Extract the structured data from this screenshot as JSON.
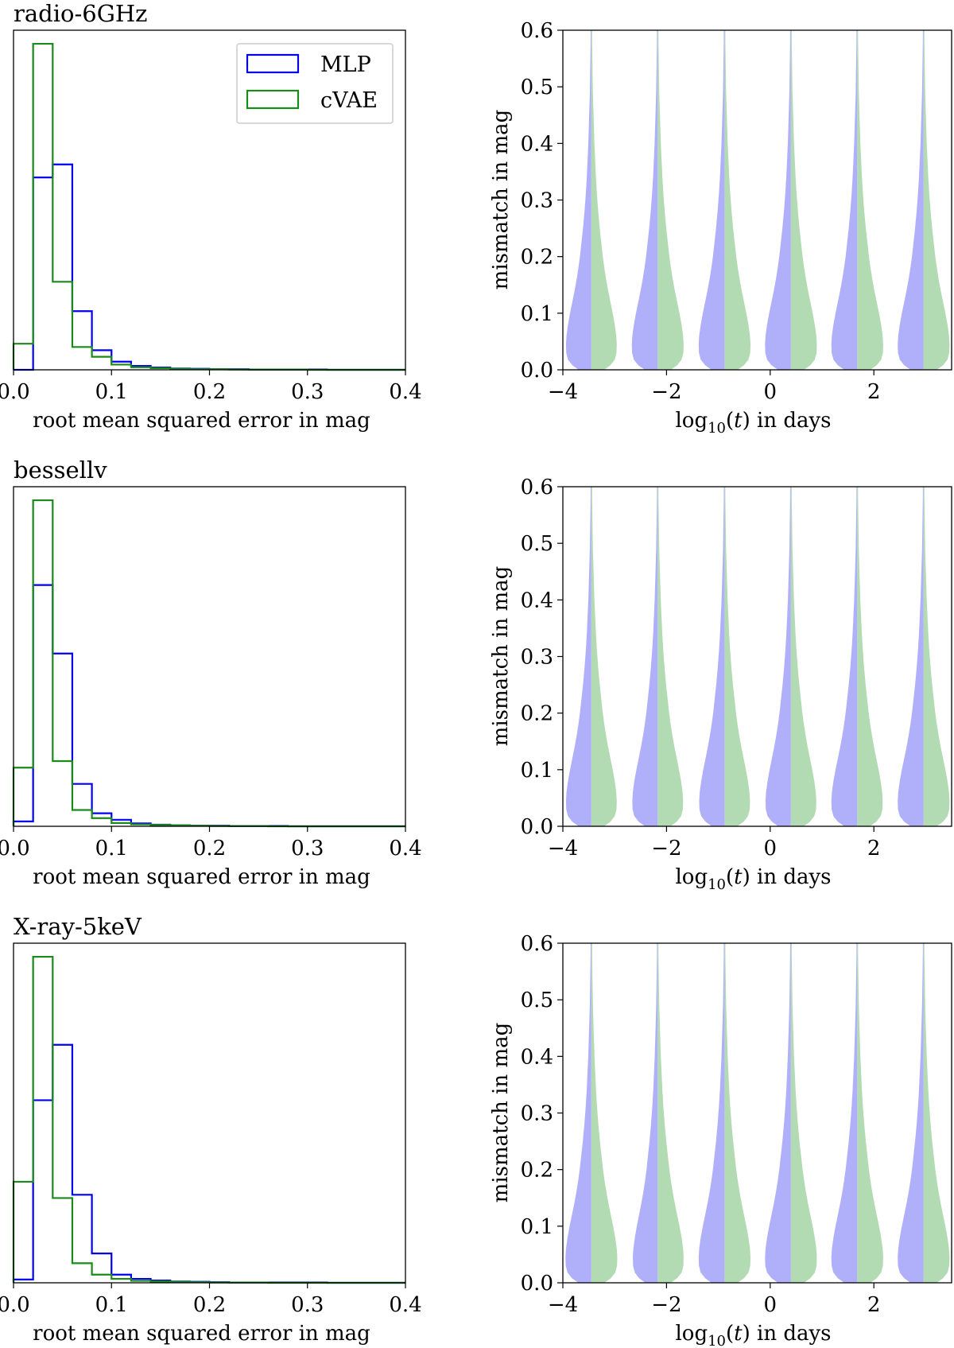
{
  "figure": {
    "rows": [
      {
        "band": "radio-6GHz",
        "hist": {
          "type": "histogram",
          "title": "radio-6GHz",
          "xlabel": "root mean squared error in mag",
          "ylabel": "",
          "xlim": [
            0.0,
            0.4
          ],
          "xticks": [
            "0.0",
            "0.1",
            "0.2",
            "0.3",
            "0.4"
          ],
          "bin_edges": [
            0.0,
            0.02,
            0.04,
            0.06,
            0.08,
            0.1,
            0.12,
            0.14,
            0.16,
            0.18,
            0.2,
            0.22,
            0.24,
            0.26,
            0.28,
            0.3,
            0.32,
            0.34,
            0.36,
            0.38,
            0.4
          ],
          "series": [
            {
              "name": "MLP",
              "color": "#0000ee",
              "values": [
                0.0,
                0.59,
                0.63,
                0.18,
                0.06,
                0.025,
                0.012,
                0.007,
                0.004,
                0.003,
                0.002,
                0.002,
                0.001,
                0.001,
                0.001,
                0.001,
                0.0,
                0.0,
                0.0,
                0.0
              ]
            },
            {
              "name": "cVAE",
              "color": "#1a8a1a",
              "values": [
                0.08,
                1.0,
                0.27,
                0.07,
                0.04,
                0.016,
                0.008,
                0.005,
                0.003,
                0.002,
                0.002,
                0.001,
                0.001,
                0.001,
                0.001,
                0.0,
                0.0,
                0.0,
                0.0,
                0.0
              ]
            }
          ],
          "legend": [
            "MLP",
            "cVAE"
          ]
        },
        "violin": {
          "type": "violin",
          "xlabel": "log10(t) in days",
          "ylabel": "mismatch in mag",
          "xlim": [
            -4.0,
            3.5
          ],
          "ylim": [
            0.0,
            0.6
          ],
          "xticks": [
            "−4",
            "−2",
            "0",
            "2"
          ],
          "yticks": [
            "0.0",
            "0.1",
            "0.2",
            "0.3",
            "0.4",
            "0.5",
            "0.6"
          ],
          "positions": [
            -3.45,
            -2.17,
            -0.88,
            0.4,
            1.68,
            2.96
          ],
          "series": [
            {
              "name": "MLP",
              "side": "left",
              "color": "#b0b0fa"
            },
            {
              "name": "cVAE",
              "side": "right",
              "color": "#b3dbb3"
            }
          ],
          "widths_left": [
            0.49,
            0.5,
            0.5,
            0.5,
            0.5,
            0.5
          ],
          "widths_right": [
            0.49,
            0.5,
            0.5,
            0.5,
            0.5,
            0.5
          ]
        }
      },
      {
        "band": "bessellv",
        "hist": {
          "type": "histogram",
          "title": "bessellv",
          "xlabel": "root mean squared error in mag",
          "ylabel": "",
          "xlim": [
            0.0,
            0.4
          ],
          "xticks": [
            "0.0",
            "0.1",
            "0.2",
            "0.3",
            "0.4"
          ],
          "bin_edges": [
            0.0,
            0.02,
            0.04,
            0.06,
            0.08,
            0.1,
            0.12,
            0.14,
            0.16,
            0.18,
            0.2,
            0.22,
            0.24,
            0.26,
            0.28,
            0.3,
            0.32,
            0.34,
            0.36,
            0.38,
            0.4
          ],
          "series": [
            {
              "name": "MLP",
              "color": "#0000ee",
              "values": [
                0.015,
                0.74,
                0.53,
                0.13,
                0.04,
                0.02,
                0.009,
                0.005,
                0.003,
                0.002,
                0.002,
                0.001,
                0.001,
                0.001,
                0.0,
                0.0,
                0.0,
                0.0,
                0.0,
                0.0
              ]
            },
            {
              "name": "cVAE",
              "color": "#1a8a1a",
              "values": [
                0.18,
                1.0,
                0.2,
                0.05,
                0.025,
                0.01,
                0.006,
                0.004,
                0.003,
                0.002,
                0.001,
                0.001,
                0.001,
                0.0,
                0.0,
                0.0,
                0.0,
                0.0,
                0.0,
                0.0
              ]
            }
          ]
        },
        "violin": {
          "type": "violin",
          "xlabel": "log10(t) in days",
          "ylabel": "mismatch in mag",
          "xlim": [
            -4.0,
            3.5
          ],
          "ylim": [
            0.0,
            0.6
          ],
          "xticks": [
            "−4",
            "−2",
            "0",
            "2"
          ],
          "yticks": [
            "0.0",
            "0.1",
            "0.2",
            "0.3",
            "0.4",
            "0.5",
            "0.6"
          ],
          "positions": [
            -3.45,
            -2.17,
            -0.88,
            0.4,
            1.68,
            2.96
          ],
          "series": [
            {
              "name": "MLP",
              "side": "left",
              "color": "#b0b0fa"
            },
            {
              "name": "cVAE",
              "side": "right",
              "color": "#b3dbb3"
            }
          ],
          "widths_left": [
            0.49,
            0.49,
            0.49,
            0.49,
            0.5,
            0.5
          ],
          "widths_right": [
            0.49,
            0.49,
            0.49,
            0.49,
            0.49,
            0.5
          ]
        }
      },
      {
        "band": "X-ray-5keV",
        "hist": {
          "type": "histogram",
          "title": "X-ray-5keV",
          "xlabel": "root mean squared error in mag",
          "ylabel": "",
          "xlim": [
            0.0,
            0.4
          ],
          "xticks": [
            "0.0",
            "0.1",
            "0.2",
            "0.3",
            "0.4"
          ],
          "bin_edges": [
            0.0,
            0.02,
            0.04,
            0.06,
            0.08,
            0.1,
            0.12,
            0.14,
            0.16,
            0.18,
            0.2,
            0.22,
            0.24,
            0.26,
            0.28,
            0.3,
            0.32,
            0.34,
            0.36,
            0.38,
            0.4
          ],
          "series": [
            {
              "name": "MLP",
              "color": "#0000ee",
              "values": [
                0.01,
                0.56,
                0.73,
                0.27,
                0.09,
                0.025,
                0.012,
                0.007,
                0.004,
                0.003,
                0.002,
                0.001,
                0.001,
                0.001,
                0.001,
                0.001,
                0.0,
                0.0,
                0.0,
                0.0
              ]
            },
            {
              "name": "cVAE",
              "color": "#1a8a1a",
              "values": [
                0.31,
                1.0,
                0.26,
                0.06,
                0.025,
                0.012,
                0.006,
                0.004,
                0.003,
                0.002,
                0.001,
                0.001,
                0.001,
                0.0,
                0.0,
                0.0,
                0.0,
                0.0,
                0.0,
                0.0
              ]
            }
          ]
        },
        "violin": {
          "type": "violin",
          "xlabel": "log10(t) in days",
          "ylabel": "mismatch in mag",
          "xlim": [
            -4.0,
            3.5
          ],
          "ylim": [
            0.0,
            0.6
          ],
          "xticks": [
            "−4",
            "−2",
            "0",
            "2"
          ],
          "yticks": [
            "0.0",
            "0.1",
            "0.2",
            "0.3",
            "0.4",
            "0.5",
            "0.6"
          ],
          "positions": [
            -3.45,
            -2.17,
            -0.88,
            0.4,
            1.68,
            2.96
          ],
          "series": [
            {
              "name": "MLP",
              "side": "left",
              "color": "#b0b0fa"
            },
            {
              "name": "cVAE",
              "side": "right",
              "color": "#b3dbb3"
            }
          ],
          "widths_left": [
            0.5,
            0.48,
            0.5,
            0.5,
            0.5,
            0.5
          ],
          "widths_right": [
            0.5,
            0.5,
            0.5,
            0.5,
            0.5,
            0.5
          ]
        }
      }
    ]
  }
}
